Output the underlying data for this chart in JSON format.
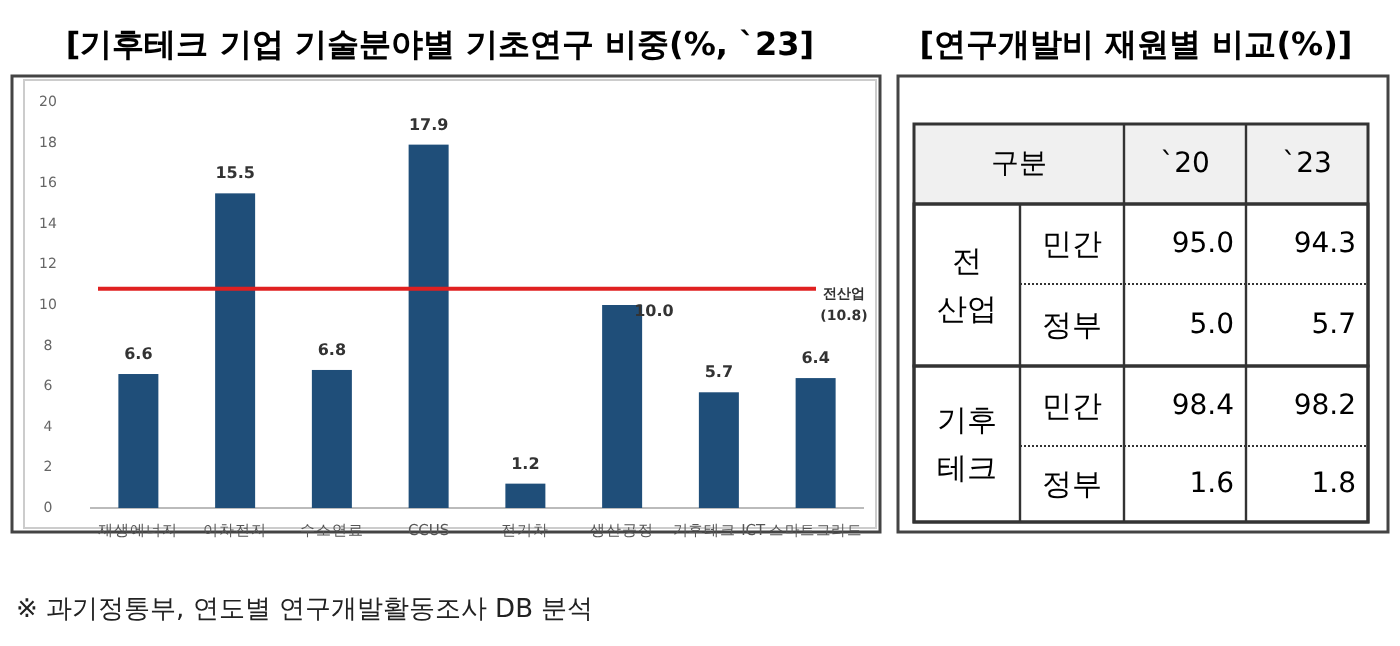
{
  "chart_data": [
    {
      "type": "bar",
      "title": "[기후테크 기업 기술분야별 기초연구 비중(%, `23]",
      "categories": [
        "재생에너지",
        "이차전지",
        "수소연료",
        "CCUS",
        "전기차",
        "생산공정",
        "기후테크 ICT",
        "스마트그리드"
      ],
      "values": [
        6.6,
        15.5,
        6.8,
        17.9,
        1.2,
        10.0,
        5.7,
        6.4
      ],
      "value_labels": [
        "6.6",
        "15.5",
        "6.8",
        "17.9",
        "1.2",
        "10.0",
        "5.7",
        "6.4"
      ],
      "color": "#1f4e79",
      "ylim": [
        0,
        20
      ],
      "yticks": [
        0,
        2,
        4,
        6,
        8,
        10,
        12,
        14,
        16,
        18,
        20
      ],
      "grid": false,
      "ref_lines": [
        {
          "axis": "y",
          "value": 10.8,
          "label": "전산업\n(10.8)",
          "color": "#e02020"
        }
      ],
      "annotations": [
        "※ 과기정통부, 연도별 연구개발활동조사 DB 분석"
      ]
    },
    {
      "type": "heatmap",
      "title": "[연구개발비 재원별 비교(%)]",
      "ylabel": "구분",
      "categories": [
        "`20",
        "`23"
      ],
      "y_categories": [
        "민간",
        "정부",
        "민간",
        "정부"
      ],
      "y2_categories": [
        "전\n산업",
        null,
        "기후\n테크",
        null
      ],
      "cells": [
        [
          95.0,
          94.3
        ],
        [
          5.0,
          5.7
        ],
        [
          98.4,
          98.2
        ],
        [
          1.6,
          1.8
        ]
      ],
      "cell_labels": [
        [
          "95.0",
          "94.3"
        ],
        [
          "5.0",
          "5.7"
        ],
        [
          "98.4",
          "98.2"
        ],
        [
          "1.6",
          "1.8"
        ]
      ]
    }
  ]
}
